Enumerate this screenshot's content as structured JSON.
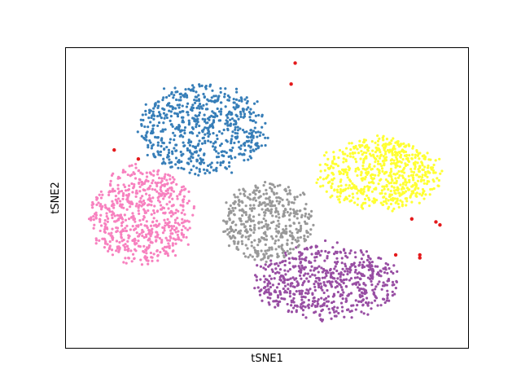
{
  "chart_data": {
    "type": "scatter",
    "title": "",
    "xlabel": "tSNE1",
    "ylabel": "tSNE2",
    "xlim": [
      0,
      100
    ],
    "ylim": [
      0,
      100
    ],
    "xticks": [],
    "yticks": [],
    "grid": false,
    "legend": "none",
    "series": [
      {
        "color": "#377eb8",
        "cx": 34,
        "cy": 73,
        "rx": 17,
        "ry": 16,
        "n": 650,
        "seed": 11
      },
      {
        "color": "#ffff33",
        "cx": 78,
        "cy": 58,
        "rx": 16,
        "ry": 13,
        "n": 650,
        "seed": 23
      },
      {
        "color": "#f781bf",
        "cx": 19,
        "cy": 44,
        "rx": 14,
        "ry": 17,
        "n": 650,
        "seed": 37
      },
      {
        "color": "#984ea3",
        "cx": 65,
        "cy": 22,
        "rx": 19,
        "ry": 13,
        "n": 650,
        "seed": 41
      },
      {
        "color": "#999999",
        "cx": 50,
        "cy": 42,
        "rx": 12,
        "ry": 14,
        "n": 450,
        "seed": 53
      },
      {
        "color": "#e41a1c",
        "points": [
          [
            57,
            95
          ],
          [
            56,
            88
          ],
          [
            12,
            66
          ],
          [
            18,
            63
          ],
          [
            92,
            42
          ],
          [
            93,
            41
          ],
          [
            86,
            43
          ],
          [
            82,
            31
          ],
          [
            88,
            30
          ],
          [
            88,
            31
          ]
        ]
      }
    ]
  }
}
